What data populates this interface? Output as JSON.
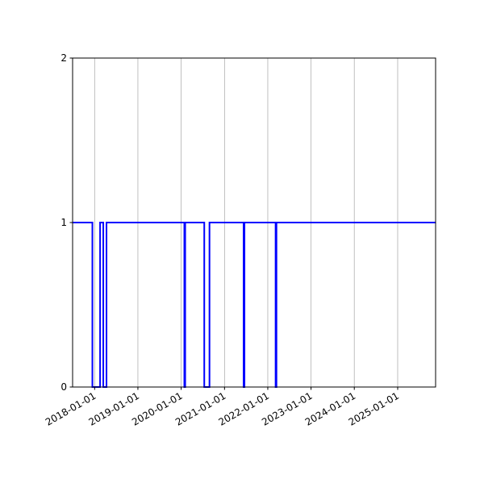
{
  "chart_data": {
    "type": "line",
    "step": true,
    "title": "",
    "xlabel": "",
    "ylabel": "",
    "xlim": [
      "2017-06-29",
      "2025-11-17"
    ],
    "ylim": [
      0,
      2
    ],
    "y_ticks": [
      "0",
      "1",
      "2"
    ],
    "x_ticks": [
      "2018-01-01",
      "2019-01-01",
      "2020-01-01",
      "2021-01-01",
      "2022-01-01",
      "2023-01-01",
      "2024-01-01",
      "2025-01-01"
    ],
    "grid": "vertical (x only)",
    "color": "#0000ff",
    "series": [
      {
        "base_value": 1,
        "zero_intervals": [
          [
            "2017-12-13",
            "2018-02-16"
          ],
          [
            "2018-03-15",
            "2018-04-11"
          ],
          [
            "2020-01-28",
            "2020-02-04"
          ],
          [
            "2020-07-14",
            "2020-08-27"
          ],
          [
            "2021-06-11",
            "2021-06-18"
          ],
          [
            "2022-03-08",
            "2022-03-15"
          ]
        ]
      }
    ]
  }
}
